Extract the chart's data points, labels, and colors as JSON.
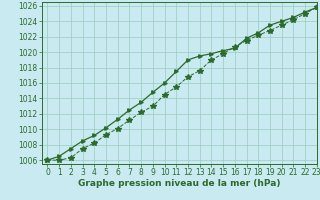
{
  "title": "Graphe pression niveau de la mer (hPa)",
  "background_color": "#c8eaf0",
  "grid_color": "#99ccbb",
  "line_color": "#2d6a2d",
  "xlim": [
    -0.5,
    23
  ],
  "ylim": [
    1005.5,
    1026.5
  ],
  "ytick_min": 1006,
  "ytick_max": 1026,
  "ytick_step": 2,
  "xticks": [
    0,
    1,
    2,
    3,
    4,
    5,
    6,
    7,
    8,
    9,
    10,
    11,
    12,
    13,
    14,
    15,
    16,
    17,
    18,
    19,
    20,
    21,
    22,
    23
  ],
  "series1_x": [
    0,
    1,
    2,
    3,
    4,
    5,
    6,
    7,
    8,
    9,
    10,
    11,
    12,
    13,
    14,
    15,
    16,
    17,
    18,
    19,
    20,
    21,
    22,
    23
  ],
  "series1_y": [
    1006.0,
    1006.0,
    1006.3,
    1007.5,
    1008.2,
    1009.3,
    1010.1,
    1011.2,
    1012.2,
    1013.0,
    1014.5,
    1015.5,
    1016.8,
    1017.6,
    1019.0,
    1019.8,
    1020.7,
    1021.5,
    1022.2,
    1022.8,
    1023.5,
    1024.2,
    1025.0,
    1025.8
  ],
  "series2_x": [
    0,
    1,
    2,
    3,
    4,
    5,
    6,
    7,
    8,
    9,
    10,
    11,
    12,
    13,
    14,
    15,
    16,
    17,
    18,
    19,
    20,
    21,
    22,
    23
  ],
  "series2_y": [
    1006.0,
    1006.5,
    1007.5,
    1008.5,
    1009.2,
    1010.2,
    1011.3,
    1012.5,
    1013.5,
    1014.8,
    1016.0,
    1017.5,
    1019.0,
    1019.5,
    1019.8,
    1020.2,
    1020.5,
    1021.8,
    1022.5,
    1023.5,
    1024.0,
    1024.5,
    1025.2,
    1025.8
  ],
  "xlabel_fontsize": 6.5,
  "tick_fontsize": 5.5
}
